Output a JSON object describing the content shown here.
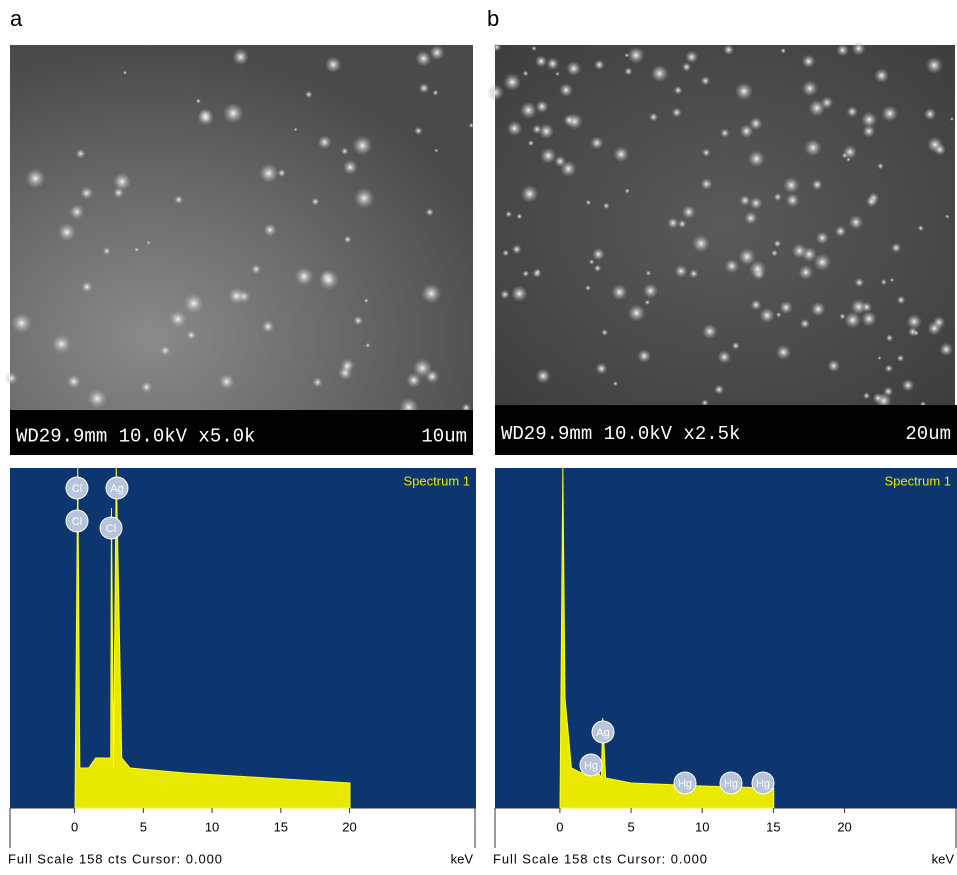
{
  "panels": [
    {
      "label": "a",
      "sem": {
        "info": "WD29.9mm 10.0kV x5.0k",
        "scale": "10um"
      },
      "spectrum": {
        "title": "Spectrum 1",
        "xlim": [
          -4.7,
          29.2
        ],
        "xticks": [
          0,
          5,
          10,
          15,
          20
        ],
        "peaks": [
          "Cl",
          "Cl",
          "Ag",
          "Cl"
        ],
        "footer": "Full Scale 158 cts Cursor: 0.000",
        "unit": "keV"
      }
    },
    {
      "label": "b",
      "sem": {
        "info": "WD29.9mm 10.0kV x2.5k",
        "scale": "20um"
      },
      "spectrum": {
        "title": "Spectrum 1",
        "xlim": [
          -4.56,
          27.9
        ],
        "xticks": [
          0,
          5,
          10,
          15,
          20
        ],
        "peaks": [
          "Ag",
          "Hg",
          "Hg",
          "Hg",
          "Hg"
        ],
        "footer": "Full Scale 158 cts Cursor: 0.000",
        "unit": "keV"
      }
    }
  ]
}
